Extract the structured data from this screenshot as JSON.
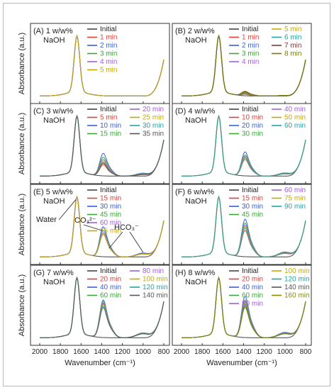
{
  "figure": {
    "ylabel": "Absorbance (a.u.)",
    "xlabel": "Wavenumber (cm⁻¹)"
  },
  "chart_data": [
    {
      "panel": "(A) 1 w/w%",
      "subtitle": "NaOH",
      "type": "line",
      "x_ticks": [
        "2000",
        "1800",
        "1600",
        "1400",
        "1200",
        "1000",
        "800"
      ],
      "x_reversed": true,
      "series": [
        {
          "name": "Initial",
          "color": "#444444",
          "carb": 0.0
        },
        {
          "name": "1 min",
          "color": "#e0403a",
          "carb": 0.0
        },
        {
          "name": "2 min",
          "color": "#3a5fd8",
          "carb": 0.0
        },
        {
          "name": "3 min",
          "color": "#3aa63a",
          "carb": 0.0
        },
        {
          "name": "4 min",
          "color": "#a060d8",
          "carb": 0.0
        },
        {
          "name": "5 min",
          "color": "#c8a800",
          "carb": 0.0
        }
      ]
    },
    {
      "panel": "(B) 2 w/w%",
      "subtitle": "NaOH",
      "type": "line",
      "x_ticks": [
        "2000",
        "1800",
        "1600",
        "1400",
        "1200",
        "1000",
        "800"
      ],
      "x_reversed": true,
      "series": [
        {
          "name": "Initial",
          "color": "#444444",
          "carb": 0.0
        },
        {
          "name": "1 min",
          "color": "#e0403a",
          "carb": 0.02
        },
        {
          "name": "2 min",
          "color": "#3a5fd8",
          "carb": 0.03
        },
        {
          "name": "3 min",
          "color": "#3aa63a",
          "carb": 0.03
        },
        {
          "name": "4 min",
          "color": "#a060d8",
          "carb": 0.04
        },
        {
          "name": "5 min",
          "color": "#c8a800",
          "carb": 0.04
        },
        {
          "name": "6 min",
          "color": "#22a3a3",
          "carb": 0.05
        },
        {
          "name": "7 min",
          "color": "#7a3a3a",
          "carb": 0.05
        },
        {
          "name": "8 min",
          "color": "#7a7a00",
          "carb": 0.06
        }
      ]
    },
    {
      "panel": "(C) 3 w/w%",
      "subtitle": "NaOH",
      "type": "line",
      "x_ticks": [
        "2000",
        "1800",
        "1600",
        "1400",
        "1200",
        "1000",
        "800"
      ],
      "x_reversed": true,
      "series": [
        {
          "name": "Initial",
          "color": "#444444",
          "carb": 0.0
        },
        {
          "name": "5 min",
          "color": "#e0403a",
          "carb": 0.15
        },
        {
          "name": "10 min",
          "color": "#3a5fd8",
          "carb": 0.3
        },
        {
          "name": "15 min",
          "color": "#3aa63a",
          "carb": 0.25
        },
        {
          "name": "20 min",
          "color": "#a060d8",
          "carb": 0.22
        },
        {
          "name": "25 min",
          "color": "#c8a800",
          "carb": 0.2
        },
        {
          "name": "30 min",
          "color": "#22a3a3",
          "carb": 0.18
        },
        {
          "name": "35 min",
          "color": "#555555",
          "carb": 0.17
        }
      ]
    },
    {
      "panel": "(D) 4 w/w%",
      "subtitle": "NaOH",
      "type": "line",
      "x_ticks": [
        "2000",
        "1800",
        "1600",
        "1400",
        "1200",
        "1000",
        "800"
      ],
      "x_reversed": true,
      "series": [
        {
          "name": "Initial",
          "color": "#444444",
          "carb": 0.0
        },
        {
          "name": "10 min",
          "color": "#e0403a",
          "carb": 0.22
        },
        {
          "name": "20 min",
          "color": "#3a5fd8",
          "carb": 0.32
        },
        {
          "name": "30 min",
          "color": "#3aa63a",
          "carb": 0.28
        },
        {
          "name": "40 min",
          "color": "#a060d8",
          "carb": 0.26
        },
        {
          "name": "50 min",
          "color": "#c8a800",
          "carb": 0.25
        },
        {
          "name": "60 min",
          "color": "#22a3a3",
          "carb": 0.24
        }
      ]
    },
    {
      "panel": "(E) 5 w/w%",
      "subtitle": "NaOH",
      "type": "line",
      "x_ticks": [
        "2000",
        "1800",
        "1600",
        "1400",
        "1200",
        "1000",
        "800"
      ],
      "x_reversed": true,
      "annotations": [
        "Water",
        "CO₃²⁻",
        "HCO₃⁻"
      ],
      "series": [
        {
          "name": "Initial",
          "color": "#444444",
          "carb": 0.0
        },
        {
          "name": "15 min",
          "color": "#e0403a",
          "carb": 0.3
        },
        {
          "name": "30 min",
          "color": "#3a5fd8",
          "carb": 0.4
        },
        {
          "name": "45 min",
          "color": "#3aa63a",
          "carb": 0.35
        },
        {
          "name": "60 min",
          "color": "#a060d8",
          "carb": 0.32
        },
        {
          "name": "75 min",
          "color": "#c8a800",
          "carb": 0.3
        }
      ]
    },
    {
      "panel": "(F) 6 w/w%",
      "subtitle": "NaOH",
      "type": "line",
      "x_ticks": [
        "2000",
        "1800",
        "1600",
        "1400",
        "1200",
        "1000",
        "800"
      ],
      "x_reversed": true,
      "series": [
        {
          "name": "Initial",
          "color": "#444444",
          "carb": 0.0
        },
        {
          "name": "15 min",
          "color": "#e0403a",
          "carb": 0.35
        },
        {
          "name": "30 min",
          "color": "#3a5fd8",
          "carb": 0.5
        },
        {
          "name": "45 min",
          "color": "#3aa63a",
          "carb": 0.45
        },
        {
          "name": "60 min",
          "color": "#a060d8",
          "carb": 0.42
        },
        {
          "name": "75 min",
          "color": "#c8a800",
          "carb": 0.4
        },
        {
          "name": "90 min",
          "color": "#22a3a3",
          "carb": 0.38
        }
      ]
    },
    {
      "panel": "(G) 7 w/w%",
      "subtitle": "NaOH",
      "type": "line",
      "x_ticks": [
        "2000",
        "1800",
        "1600",
        "1400",
        "1200",
        "1000",
        "800"
      ],
      "x_reversed": true,
      "series": [
        {
          "name": "Initial",
          "color": "#444444",
          "carb": 0.0
        },
        {
          "name": "20 min",
          "color": "#e0403a",
          "carb": 0.45
        },
        {
          "name": "40 min",
          "color": "#3a5fd8",
          "carb": 0.5
        },
        {
          "name": "60 min",
          "color": "#3aa63a",
          "carb": 0.48
        },
        {
          "name": "80 min",
          "color": "#a060d8",
          "carb": 0.46
        },
        {
          "name": "100 min",
          "color": "#c8a800",
          "carb": 0.44
        },
        {
          "name": "120 min",
          "color": "#22a3a3",
          "carb": 0.42
        },
        {
          "name": "140 min",
          "color": "#555555",
          "carb": 0.4
        }
      ]
    },
    {
      "panel": "(H) 8 w/w%",
      "subtitle": "NaOH",
      "type": "line",
      "x_ticks": [
        "2000",
        "1800",
        "1600",
        "1400",
        "1200",
        "1000",
        "800"
      ],
      "x_reversed": true,
      "series": [
        {
          "name": "Initial",
          "color": "#444444",
          "carb": 0.0
        },
        {
          "name": "20 min",
          "color": "#e0403a",
          "carb": 0.45
        },
        {
          "name": "40 min",
          "color": "#3a5fd8",
          "carb": 0.55
        },
        {
          "name": "60 min",
          "color": "#3aa63a",
          "carb": 0.5
        },
        {
          "name": "80 min",
          "color": "#a060d8",
          "carb": 0.48
        },
        {
          "name": "100 min",
          "color": "#c8a800",
          "carb": 0.46
        },
        {
          "name": "120 min",
          "color": "#22a3a3",
          "carb": 0.44
        },
        {
          "name": "140 min",
          "color": "#555555",
          "carb": 0.42
        },
        {
          "name": "160 min",
          "color": "#8a8a00",
          "carb": 0.4
        }
      ]
    }
  ]
}
